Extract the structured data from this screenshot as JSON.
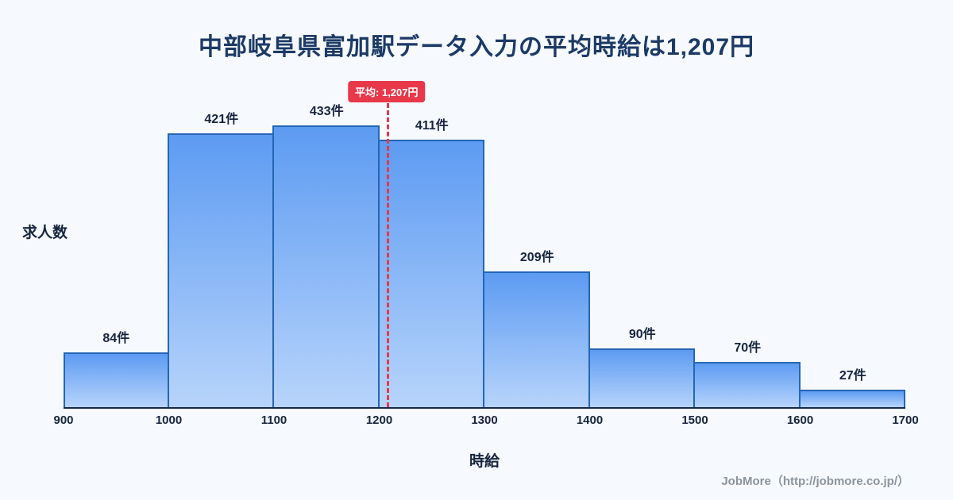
{
  "page": {
    "title": "中部岐阜県富加駅データ入力の平均時給は1,207円",
    "footer": "JobMore（http://jobmore.co.jp/）"
  },
  "chart_data": {
    "type": "bar",
    "title": "中部岐阜県富加駅データ入力の平均時給は1,207円",
    "xlabel": "時給",
    "ylabel": "求人数",
    "unit": "件",
    "bin_edges": [
      900,
      1000,
      1100,
      1200,
      1300,
      1400,
      1500,
      1600,
      1700
    ],
    "x_tick_labels": [
      "900",
      "1000",
      "1100",
      "1200",
      "1300",
      "1400",
      "1500",
      "1600",
      "1700"
    ],
    "values": [
      84,
      421,
      433,
      411,
      209,
      90,
      70,
      27
    ],
    "mean": 1207,
    "mean_label": "平均: 1,207円",
    "xlim": [
      900,
      1700
    ],
    "ylim": [
      0,
      470
    ],
    "grid": false,
    "legend": false,
    "colors": {
      "bar_fill_top": "#5d9bf2",
      "bar_fill_bottom": "#b7d4fb",
      "bar_border": "#2466b4",
      "mean_line": "#e8384a",
      "title_text": "#1c3a66",
      "axis_text": "#16243f",
      "footer_text": "#8b949e",
      "background": "#f6f9fd"
    }
  }
}
